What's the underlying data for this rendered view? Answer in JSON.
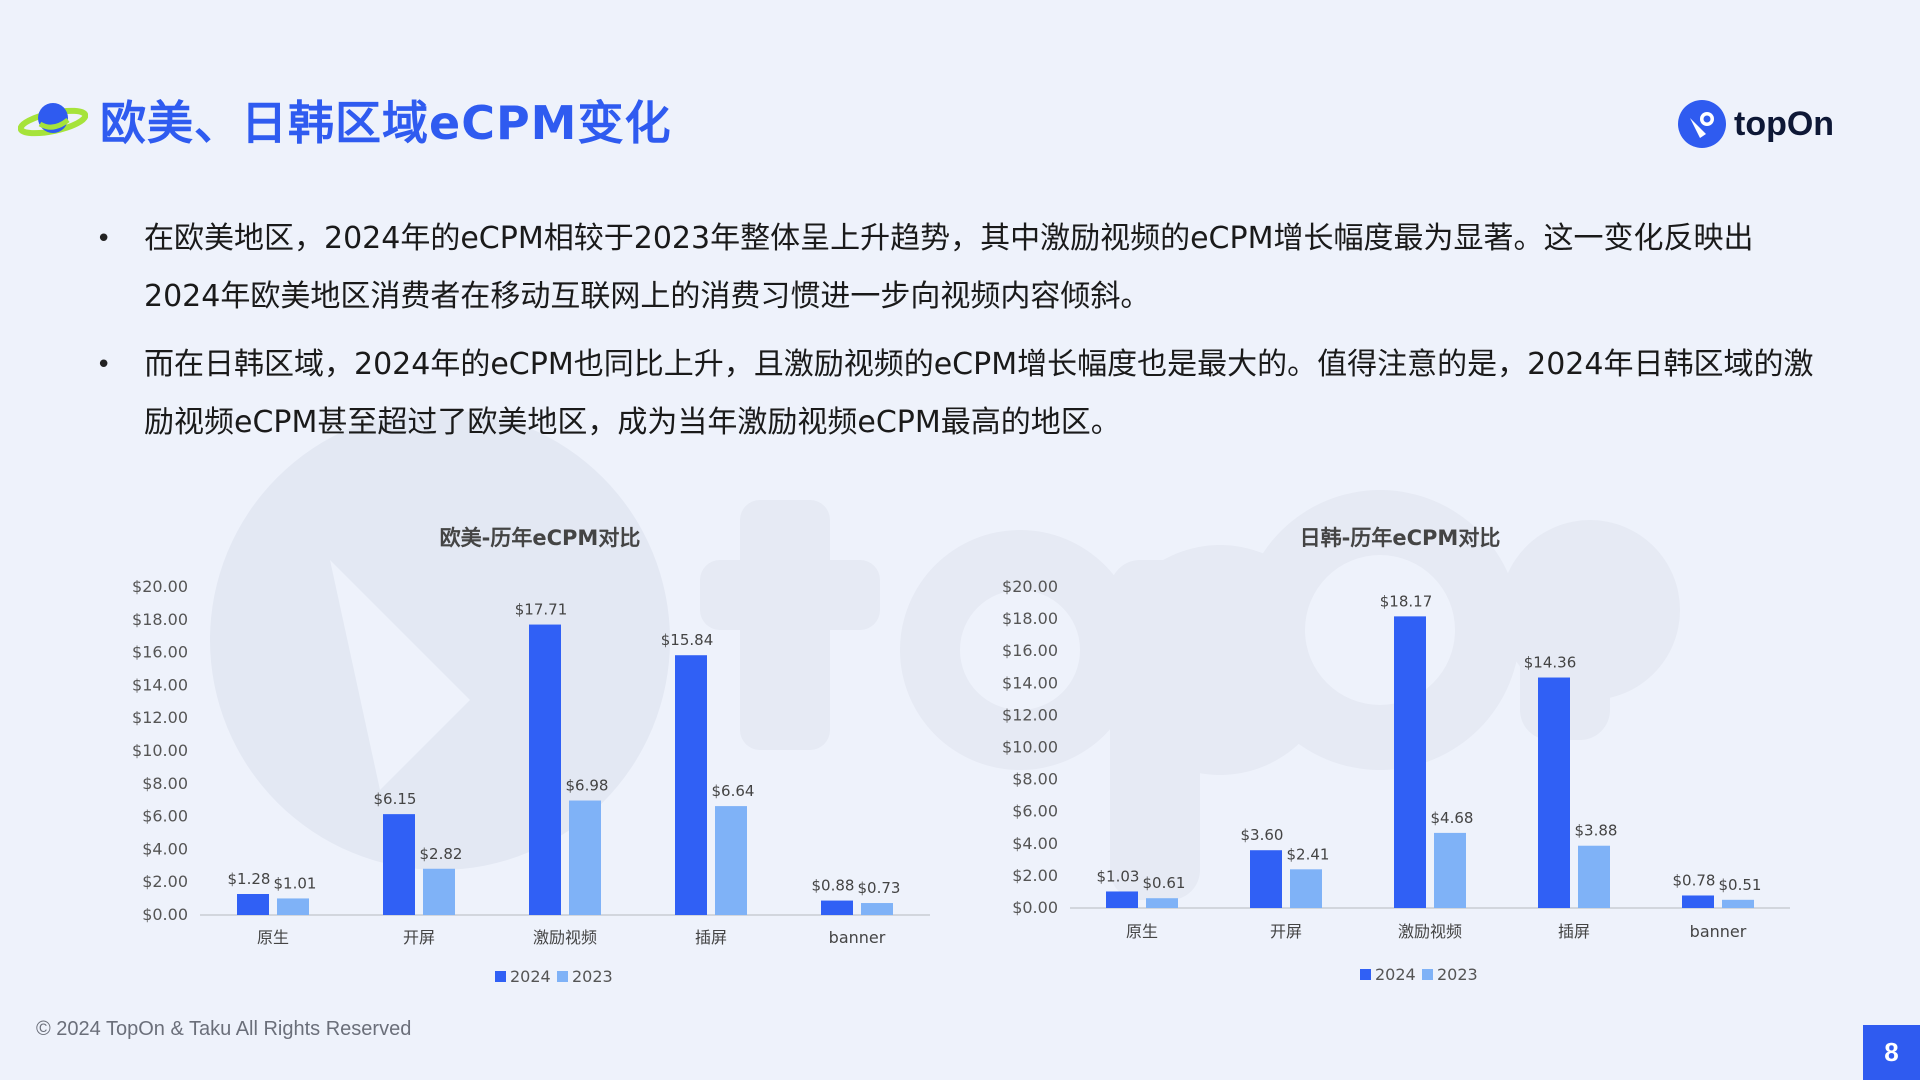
{
  "header": {
    "title": "欧美、日韩区域eCPM变化",
    "brand": "topOn"
  },
  "bullets": [
    "在欧美地区，2024年的eCPM相较于2023年整体呈上升趋势，其中激励视频的eCPM增长幅度最为显著。这一变化反映出2024年欧美地区消费者在移动互联网上的消费习惯进一步向视频内容倾斜。",
    "而在日韩区域，2024年的eCPM也同比上升，且激励视频的eCPM增长幅度也是最大的。值得注意的是，2024年日韩区域的激励视频eCPM甚至超过了欧美地区，成为当年激励视频eCPM最高的地区。"
  ],
  "colors": {
    "accent": "#2f5bf0",
    "series_2024": "#3060f5",
    "series_2023": "#7fb2f7"
  },
  "chart_data": [
    {
      "type": "bar",
      "title": "欧美-历年eCPM对比",
      "categories": [
        "原生",
        "开屏",
        "激励视频",
        "插屏",
        "banner"
      ],
      "series": [
        {
          "name": "2024",
          "values": [
            1.28,
            6.15,
            17.71,
            15.84,
            0.88
          ],
          "labels": [
            "$1.28",
            "$6.15",
            "$17.71",
            "$15.84",
            "$0.88"
          ]
        },
        {
          "name": "2023",
          "values": [
            1.01,
            2.82,
            6.98,
            6.64,
            0.73
          ],
          "labels": [
            "$1.01",
            "$2.82",
            "$6.98",
            "$6.64",
            "$0.73"
          ]
        }
      ],
      "y_ticks": [
        "$0.00",
        "$2.00",
        "$4.00",
        "$6.00",
        "$8.00",
        "$10.00",
        "$12.00",
        "$14.00",
        "$16.00",
        "$18.00",
        "$20.00"
      ],
      "ylim": [
        0,
        20
      ],
      "legend": "bottom"
    },
    {
      "type": "bar",
      "title": "日韩-历年eCPM对比",
      "categories": [
        "原生",
        "开屏",
        "激励视频",
        "插屏",
        "banner"
      ],
      "series": [
        {
          "name": "2024",
          "values": [
            1.03,
            3.6,
            18.17,
            14.36,
            0.78
          ],
          "labels": [
            "$1.03",
            "$3.60",
            "$18.17",
            "$14.36",
            "$0.78"
          ]
        },
        {
          "name": "2023",
          "values": [
            0.61,
            2.41,
            4.68,
            3.88,
            0.51
          ],
          "labels": [
            "$0.61",
            "$2.41",
            "$4.68",
            "$3.88",
            "$0.51"
          ]
        }
      ],
      "y_ticks": [
        "$0.00",
        "$2.00",
        "$4.00",
        "$6.00",
        "$8.00",
        "$10.00",
        "$12.00",
        "$14.00",
        "$16.00",
        "$18.00",
        "$20.00"
      ],
      "ylim": [
        0,
        20
      ],
      "legend": "bottom"
    }
  ],
  "footer": {
    "copyright": "© 2024 TopOn & Taku All Rights Reserved",
    "page_number": "8"
  }
}
